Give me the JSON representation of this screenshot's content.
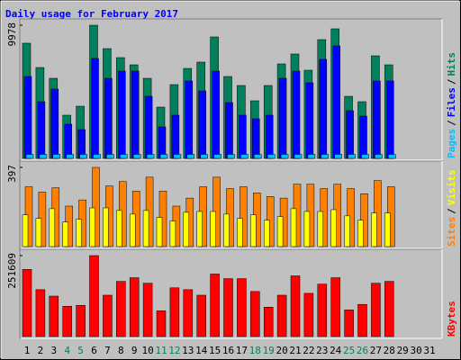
{
  "chart_data": [
    {
      "type": "bar",
      "title": "Daily usage for February 2017",
      "legend_separator": "/",
      "ylim": [
        0,
        9978
      ],
      "yticks": [
        9978
      ],
      "series": [
        {
          "name": "Pages",
          "color": "#00c0ff",
          "values": [
            300,
            300,
            300,
            300,
            300,
            300,
            300,
            300,
            300,
            300,
            300,
            300,
            300,
            300,
            300,
            300,
            300,
            300,
            300,
            300,
            300,
            300,
            300,
            300,
            300,
            300,
            300,
            300,
            null,
            null,
            null
          ]
        },
        {
          "name": "Files",
          "color": "#0000ff",
          "values": [
            6135,
            4247,
            5191,
            2562,
            2157,
            7484,
            6000,
            6540,
            6540,
            4652,
            2360,
            3236,
            5798,
            5056,
            6540,
            4180,
            3236,
            2966,
            3236,
            6000,
            6540,
            5663,
            7416,
            8427,
            3573,
            3169,
            5798,
            5798,
            null,
            null,
            null
          ]
        },
        {
          "name": "Hits",
          "color": "#00805c",
          "values": [
            8630,
            6809,
            6000,
            3236,
            3910,
            9978,
            8225,
            7551,
            7011,
            6000,
            3843,
            5528,
            6742,
            7214,
            9101,
            6135,
            5461,
            4315,
            5461,
            7079,
            7821,
            6607,
            8899,
            9708,
            4652,
            4247,
            7686,
            7011,
            null,
            null,
            null
          ]
        }
      ]
    },
    {
      "type": "bar",
      "legend_separator": "/",
      "ylim": [
        0,
        397
      ],
      "yticks": [
        397
      ],
      "series": [
        {
          "name": "Sites",
          "color": "#ff8000",
          "values": [
            300,
            273,
            295,
            203,
            234,
            397,
            304,
            326,
            278,
            348,
            278,
            203,
            243,
            300,
            348,
            291,
            300,
            269,
            251,
            243,
            313,
            313,
            291,
            313,
            291,
            265,
            331,
            300,
            null,
            null,
            null
          ]
        },
        {
          "name": "Visits",
          "color": "#ffff00",
          "values": [
            159,
            141,
            190,
            123,
            137,
            194,
            194,
            181,
            163,
            181,
            146,
            128,
            172,
            176,
            176,
            163,
            141,
            159,
            132,
            150,
            190,
            176,
            176,
            185,
            154,
            132,
            168,
            168,
            null,
            null,
            null
          ]
        }
      ]
    },
    {
      "type": "bar",
      "ylim": [
        0,
        251609
      ],
      "yticks": [
        251609
      ],
      "categories": [
        "1",
        "2",
        "3",
        "4",
        "5",
        "6",
        "7",
        "8",
        "9",
        "10",
        "11",
        "12",
        "13",
        "14",
        "15",
        "16",
        "17",
        "18",
        "19",
        "20",
        "21",
        "22",
        "23",
        "24",
        "25",
        "26",
        "27",
        "28",
        "29",
        "30",
        "31"
      ],
      "category_colors": [
        "#000000",
        "#000000",
        "#000000",
        "#00805c",
        "#00805c",
        "#000000",
        "#000000",
        "#000000",
        "#000000",
        "#000000",
        "#00805c",
        "#00805c",
        "#000000",
        "#000000",
        "#000000",
        "#000000",
        "#000000",
        "#00805c",
        "#00805c",
        "#000000",
        "#000000",
        "#000000",
        "#000000",
        "#000000",
        "#00805c",
        "#00805c",
        "#000000",
        "#000000",
        "#000000",
        "#000000",
        "#000000"
      ],
      "series": [
        {
          "name": "KBytes",
          "color": "#ff0000",
          "values": [
            208707,
            145809,
            125796,
            94347,
            97206,
            251609,
            128655,
            171540,
            182976,
            165822,
            80052,
            151527,
            145809,
            128655,
            194412,
            180117,
            180117,
            140091,
            91488,
            128655,
            188694,
            134373,
            162963,
            182976,
            82911,
            100065,
            165822,
            171540,
            null,
            null,
            null
          ]
        }
      ]
    }
  ]
}
